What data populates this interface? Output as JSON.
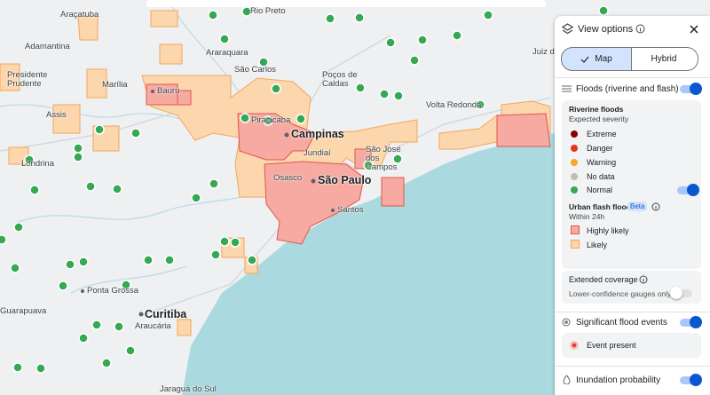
{
  "map": {
    "labels": [
      "Araçatuba",
      "Rio Preto",
      "Adamantina",
      "Presidente Prudente",
      "Marília",
      "Bauru",
      "Assis",
      "Londrina",
      "Araraquara",
      "São Carlos",
      "Poços de Caldas",
      "Piracicaba",
      "Campinas",
      "Jundiaí",
      "Osasco",
      "São Paulo",
      "Santos",
      "São José dos Campos",
      "Volta Redonda",
      "Juiz de",
      "Ponta Grossa",
      "Curitiba",
      "Guarapuava",
      "Araucária",
      "Jaraguá do Sul"
    ]
  },
  "panel": {
    "title": "View options",
    "map_button": "Map",
    "hybrid_button": "Hybrid",
    "floods": {
      "title": "Floods (riverine and flash)",
      "riverine": {
        "title": "Riverine floods",
        "subtitle": "Expected severity",
        "items": [
          "Extreme",
          "Danger",
          "Warning",
          "No data",
          "Normal"
        ]
      },
      "urban": {
        "title": "Urban flash floods",
        "badge": "Beta",
        "subtitle": "Within 24h",
        "items": [
          "Highly likely",
          "Likely"
        ]
      }
    },
    "extended": {
      "title": "Extended coverage",
      "option": "Lower-confidence gauges only"
    },
    "events": {
      "title": "Significant flood events",
      "item": "Event present"
    },
    "inundation": {
      "title": "Inundation probability"
    }
  }
}
